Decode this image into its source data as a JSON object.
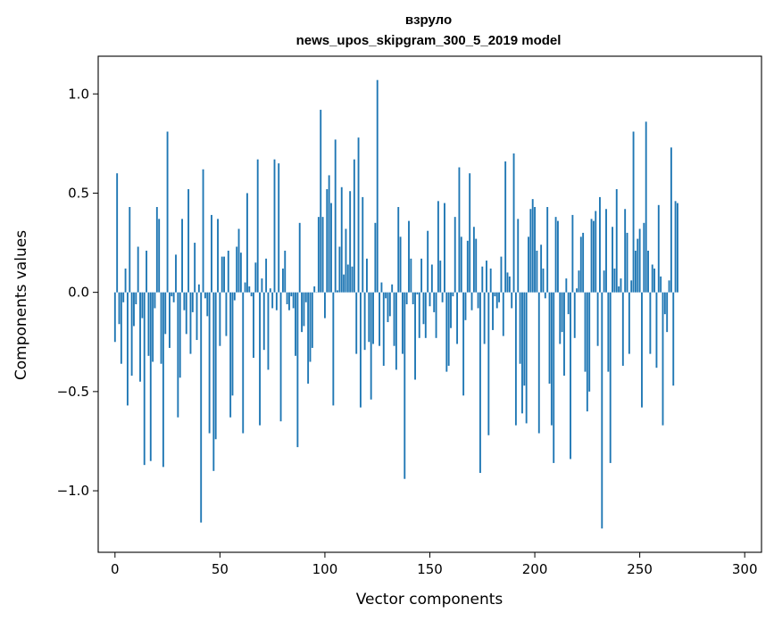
{
  "chart_data": {
    "type": "bar",
    "title": "взруло",
    "subtitle": "news_upos_skipgram_300_5_2019 model",
    "xlabel": "Vector components",
    "ylabel": "Components values",
    "xlim": [
      -8,
      308
    ],
    "ylim": [
      -1.31,
      1.19
    ],
    "xticks": [
      0,
      50,
      100,
      150,
      200,
      250,
      300
    ],
    "yticks": [
      -1.0,
      -0.5,
      0.0,
      0.5,
      1.0
    ],
    "ytick_labels": [
      "−1.0",
      "−0.5",
      "0.0",
      "0.5",
      "1.0"
    ],
    "bar_color": "#1f77b4",
    "grid": false,
    "values": [
      -0.25,
      0.6,
      -0.16,
      -0.36,
      -0.05,
      0.12,
      -0.57,
      0.43,
      -0.42,
      -0.17,
      -0.06,
      0.23,
      -0.45,
      -0.13,
      -0.87,
      0.21,
      -0.32,
      -0.85,
      -0.35,
      -0.08,
      0.43,
      0.37,
      -0.36,
      -0.88,
      -0.21,
      0.81,
      -0.28,
      -0.02,
      -0.05,
      0.19,
      -0.63,
      -0.43,
      0.37,
      -0.09,
      -0.21,
      0.52,
      -0.31,
      -0.1,
      0.25,
      -0.24,
      0.04,
      -1.16,
      0.62,
      -0.03,
      -0.12,
      -0.71,
      0.39,
      -0.9,
      -0.74,
      0.37,
      -0.27,
      0.18,
      0.18,
      -0.22,
      0.21,
      -0.63,
      -0.52,
      -0.04,
      0.23,
      0.32,
      0.2,
      -0.71,
      0.05,
      0.5,
      0.03,
      -0.02,
      -0.33,
      0.15,
      0.67,
      -0.67,
      0.07,
      -0.29,
      0.17,
      -0.39,
      0.02,
      -0.08,
      0.67,
      -0.09,
      0.65,
      -0.65,
      0.12,
      0.21,
      -0.06,
      -0.09,
      -0.02,
      -0.08,
      -0.32,
      -0.78,
      0.35,
      -0.2,
      -0.17,
      -0.05,
      -0.46,
      -0.35,
      -0.28,
      0.03,
      0.0,
      0.38,
      0.92,
      0.38,
      -0.13,
      0.52,
      0.59,
      0.45,
      -0.57,
      0.77,
      0.01,
      0.23,
      0.53,
      0.09,
      0.32,
      0.14,
      0.51,
      0.13,
      0.67,
      -0.31,
      0.78,
      -0.58,
      0.48,
      -0.29,
      0.17,
      -0.25,
      -0.54,
      -0.26,
      0.35,
      1.07,
      -0.27,
      0.05,
      -0.37,
      -0.03,
      -0.15,
      -0.12,
      0.04,
      -0.27,
      -0.39,
      0.43,
      0.28,
      -0.31,
      -0.94,
      -0.06,
      0.36,
      0.17,
      -0.06,
      -0.44,
      -0.01,
      -0.23,
      0.17,
      -0.16,
      -0.23,
      0.31,
      -0.07,
      0.14,
      -0.1,
      -0.23,
      0.46,
      0.16,
      -0.05,
      0.45,
      -0.4,
      -0.37,
      -0.18,
      -0.02,
      0.38,
      -0.26,
      0.63,
      0.28,
      -0.52,
      -0.14,
      0.26,
      0.6,
      -0.09,
      0.33,
      0.27,
      -0.08,
      -0.91,
      0.13,
      -0.26,
      0.16,
      -0.72,
      0.12,
      -0.19,
      -0.02,
      -0.08,
      -0.05,
      0.18,
      -0.22,
      0.66,
      0.1,
      0.08,
      -0.08,
      0.7,
      -0.67,
      0.37,
      -0.36,
      -0.61,
      -0.47,
      -0.66,
      0.28,
      0.42,
      0.47,
      0.43,
      0.21,
      -0.71,
      0.24,
      0.12,
      -0.03,
      0.43,
      -0.46,
      -0.67,
      -0.86,
      0.38,
      0.36,
      -0.26,
      -0.2,
      -0.42,
      0.07,
      -0.11,
      -0.84,
      0.39,
      -0.23,
      0.02,
      0.11,
      0.28,
      0.3,
      -0.4,
      -0.6,
      -0.5,
      0.37,
      0.36,
      0.41,
      -0.27,
      0.48,
      -1.19,
      0.11,
      0.42,
      -0.4,
      -0.86,
      0.33,
      0.12,
      0.52,
      0.03,
      0.07,
      -0.37,
      0.42,
      0.3,
      -0.31,
      0.06,
      0.81,
      0.21,
      0.27,
      0.32,
      -0.58,
      0.35,
      0.86,
      0.21,
      -0.31,
      0.14,
      0.12,
      -0.38,
      0.44,
      0.08,
      -0.67,
      -0.11,
      -0.2,
      0.06,
      0.73,
      -0.47,
      0.46,
      0.45
    ]
  }
}
